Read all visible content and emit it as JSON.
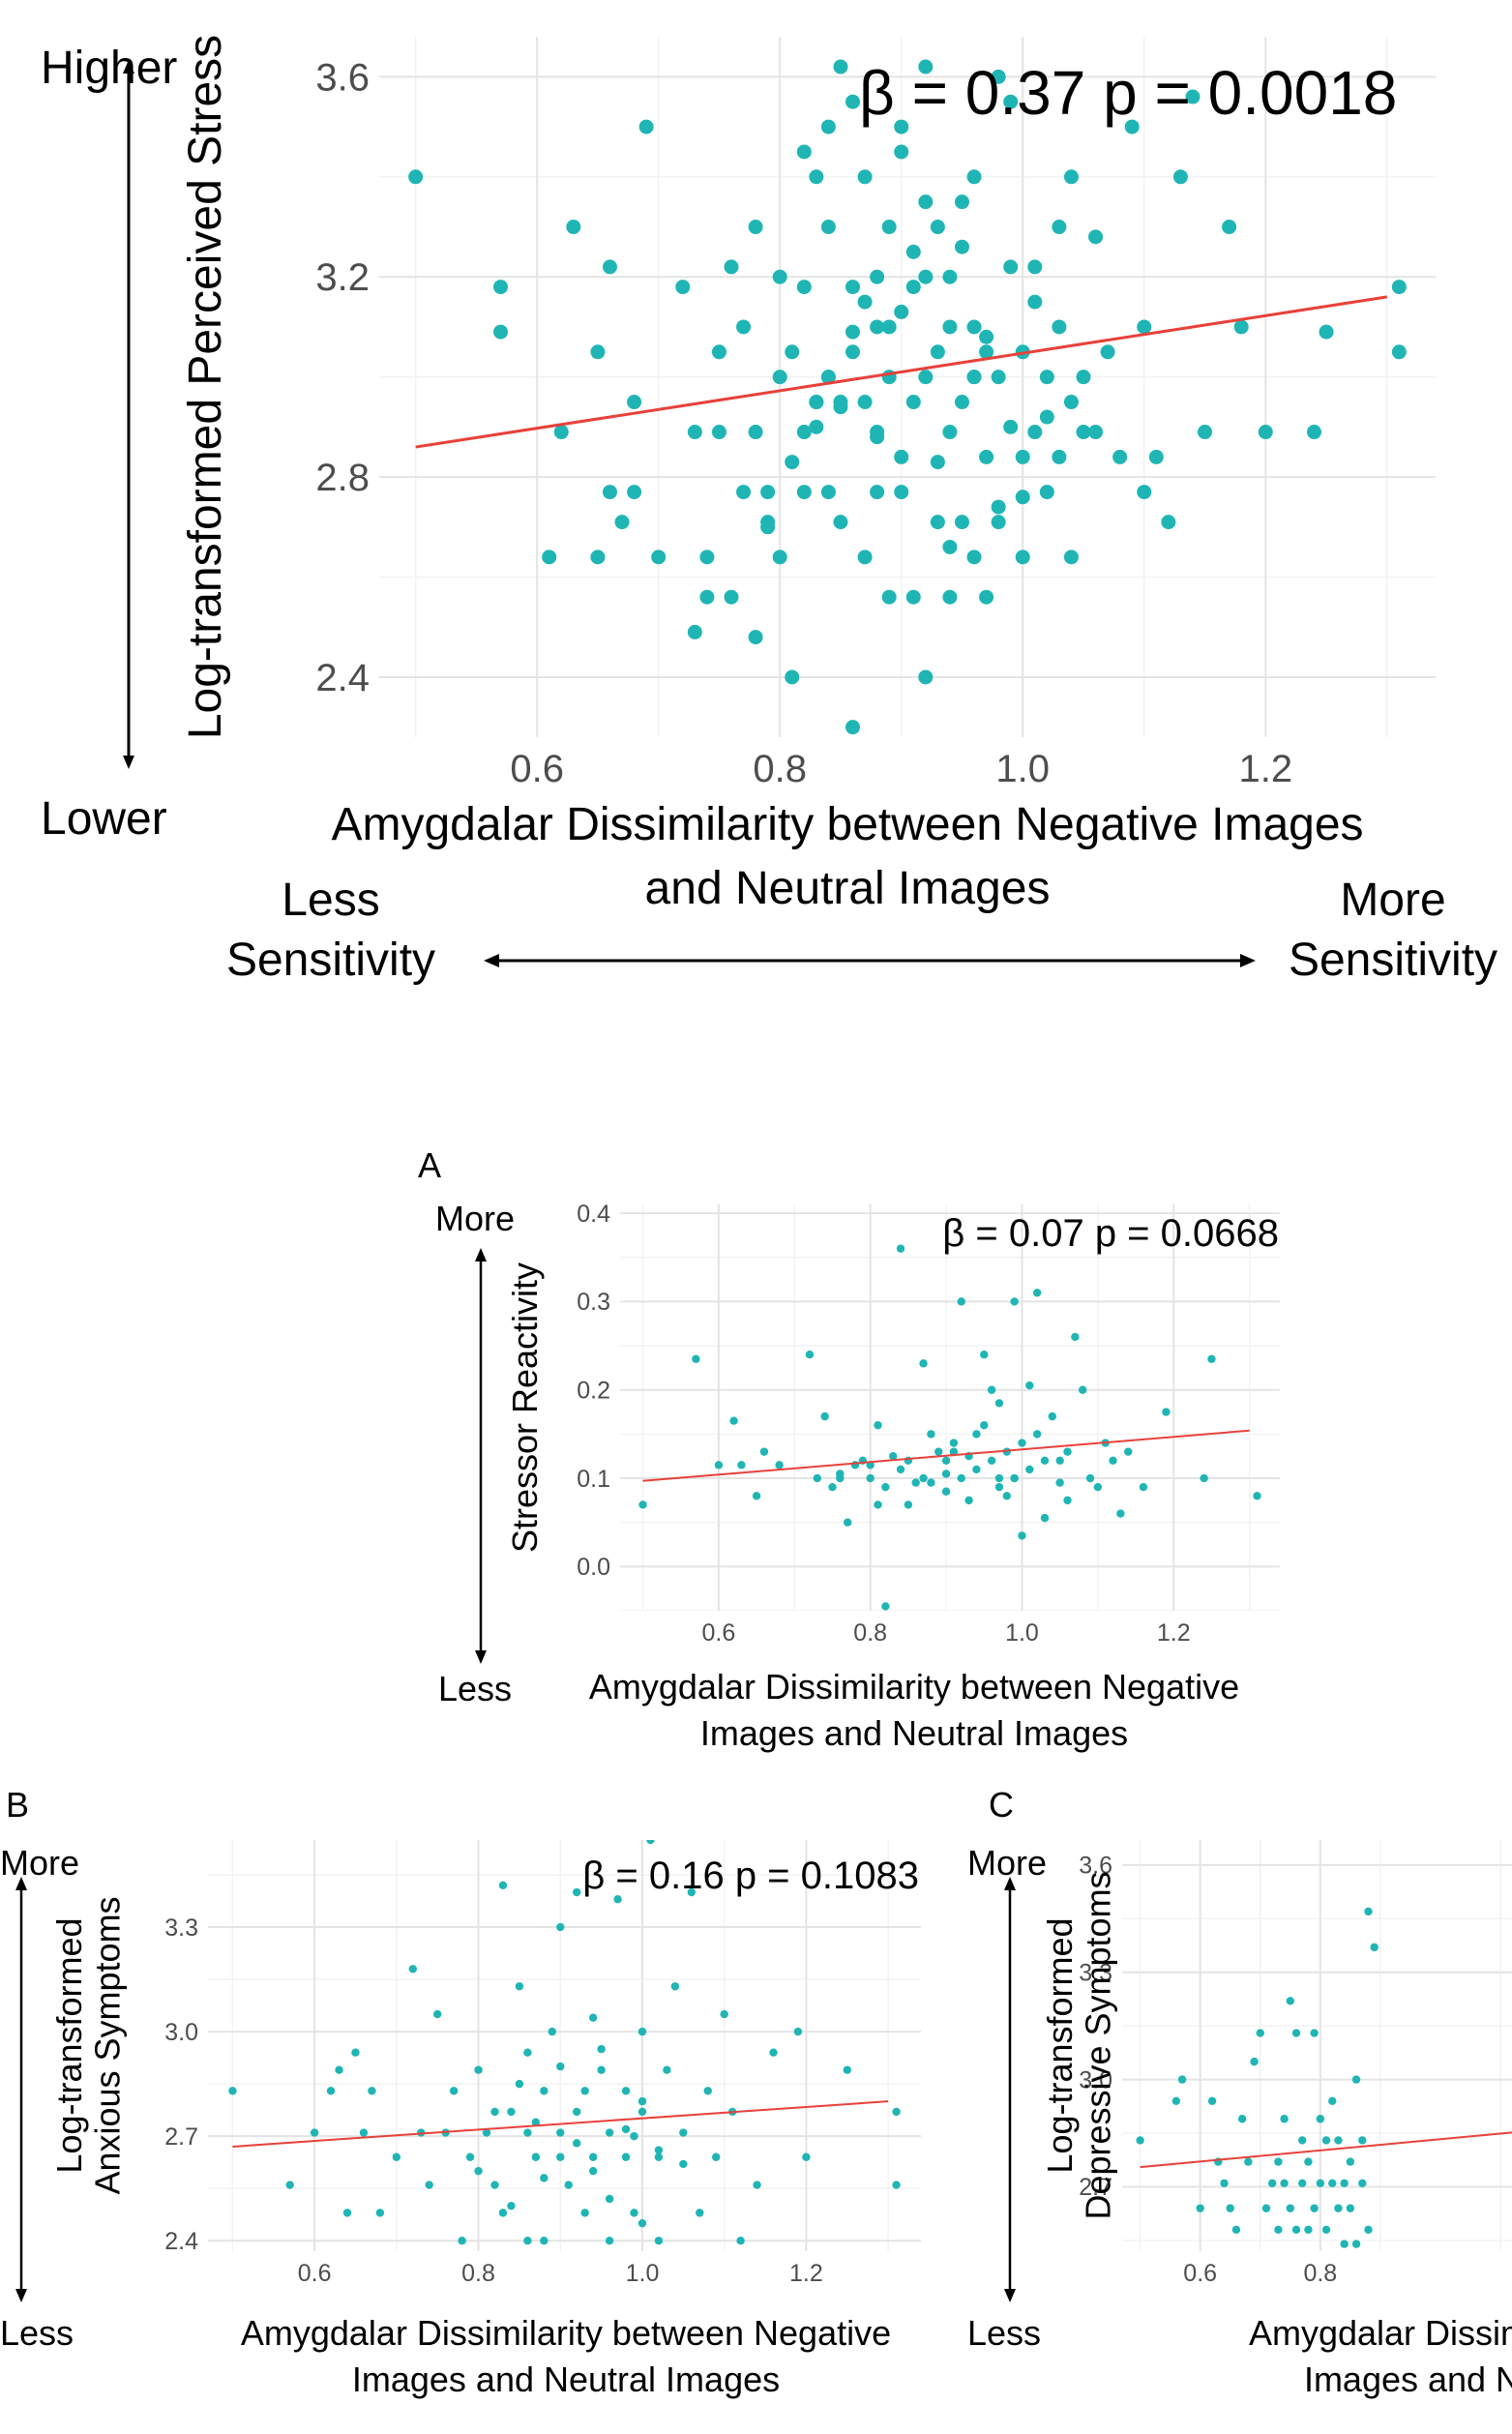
{
  "chart_data": [
    {
      "type": "scatter",
      "panel_label": "",
      "annotation": {
        "beta": "β = 0.37",
        "p": "p = 0.0018"
      },
      "xlabel": "Amygdalar Dissimilarity between Negative Images\nand Neutral Images",
      "ylabel": "Log-transformed Perceived Stress",
      "y_arrow": {
        "top": "Higher",
        "bottom": "Lower"
      },
      "x_arrow": {
        "left": "Less\nSensitivity",
        "right": "More\nSensitivity"
      },
      "xlim": [
        0.47,
        1.34
      ],
      "ylim": [
        2.28,
        3.68
      ],
      "xticks": [
        0.6,
        0.8,
        1.0,
        1.2
      ],
      "xtick_labels": [
        "0.6",
        "0.8",
        "1.0",
        "1.2"
      ],
      "yticks": [
        2.4,
        2.8,
        3.2,
        3.6
      ],
      "ytick_labels": [
        "2.4",
        "2.8",
        "3.2",
        "3.6"
      ],
      "fit_line": {
        "x": [
          0.5,
          1.3
        ],
        "y": [
          2.86,
          3.16
        ]
      },
      "grid": true,
      "points_x": [
        0.5,
        0.57,
        0.57,
        0.61,
        0.62,
        0.63,
        0.65,
        0.65,
        0.66,
        0.66,
        0.67,
        0.68,
        0.68,
        0.69,
        0.7,
        0.72,
        0.73,
        0.73,
        0.74,
        0.74,
        0.75,
        0.75,
        0.76,
        0.76,
        0.77,
        0.77,
        0.78,
        0.78,
        0.78,
        0.79,
        0.79,
        0.8,
        0.8,
        0.81,
        0.81,
        0.82,
        0.82,
        0.82,
        0.83,
        0.83,
        0.83,
        0.84,
        0.84,
        0.84,
        0.85,
        0.85,
        0.85,
        0.86,
        0.86,
        0.86,
        0.87,
        0.87,
        0.87,
        0.88,
        0.88,
        0.88,
        0.89,
        0.89,
        0.89,
        0.9,
        0.9,
        0.9,
        0.91,
        0.91,
        0.91,
        0.92,
        0.92,
        0.92,
        0.93,
        0.93,
        0.93,
        0.94,
        0.94,
        0.94,
        0.95,
        0.95,
        0.95,
        0.96,
        0.96,
        0.96,
        0.97,
        0.97,
        0.97,
        0.98,
        0.98,
        0.98,
        0.99,
        0.99,
        1.0,
        1.0,
        1.0,
        1.01,
        1.01,
        1.02,
        1.02,
        1.03,
        1.03,
        1.04,
        1.04,
        1.05,
        1.05,
        1.06,
        1.07,
        1.08,
        1.09,
        1.1,
        1.1,
        1.11,
        1.12,
        1.13,
        1.14,
        1.15,
        1.17,
        1.18,
        1.2,
        1.24,
        1.25,
        1.31,
        1.31,
        0.84,
        0.86,
        0.9,
        0.92,
        0.94,
        0.96,
        0.82,
        0.87,
        0.91,
        0.95,
        0.99,
        1.03,
        0.83,
        0.88,
        0.93,
        0.97,
        1.01,
        1.06,
        0.79,
        0.81,
        0.85,
        0.89,
        0.92,
        0.96,
        1.0,
        1.04,
        0.86,
        0.9,
        0.94,
        0.98,
        1.02,
        0.8,
        0.84,
        0.88
      ],
      "points_y": [
        3.4,
        3.09,
        3.18,
        2.64,
        2.89,
        3.3,
        2.64,
        3.05,
        2.77,
        3.22,
        2.71,
        2.77,
        2.95,
        3.5,
        2.64,
        3.18,
        2.49,
        2.89,
        2.56,
        2.64,
        2.89,
        3.05,
        2.56,
        3.22,
        2.77,
        3.1,
        2.89,
        2.48,
        3.3,
        2.77,
        2.71,
        3.0,
        2.64,
        2.4,
        3.05,
        3.18,
        2.77,
        2.89,
        2.9,
        3.4,
        2.95,
        3.5,
        3.0,
        2.77,
        3.62,
        2.95,
        2.71,
        2.3,
        3.18,
        3.05,
        2.64,
        2.95,
        3.4,
        3.1,
        2.89,
        2.77,
        3.3,
        3.0,
        2.56,
        3.5,
        2.77,
        2.84,
        3.18,
        2.95,
        2.56,
        3.0,
        3.62,
        2.4,
        3.05,
        2.71,
        3.3,
        2.56,
        2.89,
        3.1,
        3.26,
        2.95,
        2.71,
        2.64,
        3.0,
        3.4,
        2.84,
        3.05,
        2.56,
        3.6,
        3.0,
        2.71,
        3.22,
        2.9,
        3.05,
        2.64,
        2.84,
        3.22,
        2.89,
        3.0,
        2.77,
        3.1,
        2.84,
        3.4,
        2.64,
        3.0,
        2.89,
        2.89,
        3.05,
        2.84,
        3.5,
        3.1,
        2.77,
        2.84,
        2.71,
        3.4,
        3.56,
        2.89,
        3.3,
        3.1,
        2.89,
        2.89,
        3.09,
        3.18,
        3.05,
        3.3,
        3.55,
        3.45,
        3.35,
        3.2,
        3.1,
        3.45,
        3.15,
        3.25,
        3.35,
        3.55,
        3.3,
        2.95,
        3.2,
        2.83,
        3.08,
        3.15,
        3.28,
        2.7,
        2.83,
        2.94,
        3.1,
        3.2,
        3.0,
        2.76,
        2.95,
        3.09,
        3.13,
        2.66,
        2.74,
        2.92,
        3.2,
        3.0,
        2.88,
        3.0,
        3.12
      ]
    },
    {
      "type": "scatter",
      "panel_label": "A",
      "annotation": {
        "beta": "β = 0.07",
        "p": "p = 0.0668"
      },
      "xlabel": "Amygdalar Dissimilarity between Negative\nImages and Neutral Images",
      "ylabel": "Stressor Reactivity",
      "y_arrow": {
        "top": "More",
        "bottom": "Less"
      },
      "xlim": [
        0.47,
        1.34
      ],
      "ylim": [
        -0.05,
        0.41
      ],
      "xticks": [
        0.6,
        0.8,
        1.0,
        1.2
      ],
      "xtick_labels": [
        "0.6",
        "0.8",
        "1.0",
        "1.2"
      ],
      "yticks": [
        0.0,
        0.1,
        0.2,
        0.3,
        0.4
      ],
      "ytick_labels": [
        "0.0",
        "0.1",
        "0.2",
        "0.3",
        "0.4"
      ],
      "fit_line": {
        "x": [
          0.5,
          1.3
        ],
        "y": [
          0.097,
          0.154
        ]
      },
      "grid": true,
      "points_x": [
        0.5,
        0.57,
        0.6,
        0.62,
        0.63,
        0.65,
        0.66,
        0.68,
        0.72,
        0.73,
        0.74,
        0.75,
        0.76,
        0.77,
        0.78,
        0.79,
        0.8,
        0.81,
        0.81,
        0.82,
        0.83,
        0.84,
        0.85,
        0.85,
        0.86,
        0.87,
        0.87,
        0.88,
        0.89,
        0.9,
        0.9,
        0.91,
        0.92,
        0.92,
        0.93,
        0.93,
        0.94,
        0.94,
        0.95,
        0.96,
        0.96,
        0.97,
        0.97,
        0.98,
        0.98,
        0.99,
        0.99,
        1.0,
        1.0,
        1.01,
        1.01,
        1.02,
        1.02,
        1.03,
        1.04,
        1.05,
        1.05,
        1.06,
        1.07,
        1.08,
        1.09,
        1.1,
        1.11,
        1.12,
        1.13,
        1.14,
        1.16,
        1.19,
        1.24,
        1.25,
        1.31,
        0.84,
        0.88,
        0.91,
        0.95,
        0.99,
        1.03,
        0.76,
        0.8,
        0.9,
        0.97,
        1.06,
        0.82
      ],
      "points_y": [
        0.07,
        0.235,
        0.115,
        0.165,
        0.115,
        0.08,
        0.13,
        0.115,
        0.24,
        0.1,
        0.17,
        0.09,
        0.1,
        0.05,
        0.115,
        0.12,
        0.1,
        0.07,
        0.16,
        -0.045,
        0.125,
        0.36,
        0.12,
        0.07,
        0.095,
        0.23,
        0.1,
        0.15,
        0.13,
        0.105,
        0.085,
        0.14,
        0.1,
        0.3,
        0.125,
        0.075,
        0.11,
        0.15,
        0.24,
        0.12,
        0.2,
        0.09,
        0.185,
        0.13,
        0.08,
        0.3,
        0.1,
        0.035,
        0.14,
        0.205,
        0.11,
        0.31,
        0.15,
        0.055,
        0.17,
        0.12,
        0.095,
        0.075,
        0.26,
        0.2,
        0.1,
        0.09,
        0.14,
        0.12,
        0.06,
        0.13,
        0.09,
        0.175,
        0.1,
        0.235,
        0.08,
        0.11,
        0.095,
        0.13,
        0.16,
        0.1,
        0.12,
        0.105,
        0.115,
        0.12,
        0.1,
        0.13,
        0.09
      ]
    },
    {
      "type": "scatter",
      "panel_label": "B",
      "annotation": {
        "beta": "β = 0.16",
        "p": "p = 0.1083"
      },
      "xlabel": "Amygdalar Dissimilarity between Negative\nImages and Neutral Images",
      "ylabel": "Log-transformed\nAnxious Symptoms",
      "y_arrow": {
        "top": "More",
        "bottom": "Less"
      },
      "xlim": [
        0.47,
        1.34
      ],
      "ylim": [
        2.37,
        3.55
      ],
      "xticks": [
        0.6,
        0.8,
        1.0,
        1.2
      ],
      "xtick_labels": [
        "0.6",
        "0.8",
        "1.0",
        "1.2"
      ],
      "yticks": [
        2.4,
        2.7,
        3.0,
        3.3
      ],
      "ytick_labels": [
        "2.4",
        "2.7",
        "3.0",
        "3.3"
      ],
      "fit_line": {
        "x": [
          0.5,
          1.3
        ],
        "y": [
          2.67,
          2.8
        ]
      },
      "grid": true,
      "points_x": [
        0.5,
        0.57,
        0.6,
        0.62,
        0.63,
        0.64,
        0.65,
        0.66,
        0.67,
        0.68,
        0.7,
        0.72,
        0.73,
        0.74,
        0.75,
        0.76,
        0.77,
        0.78,
        0.79,
        0.8,
        0.81,
        0.82,
        0.83,
        0.83,
        0.84,
        0.85,
        0.86,
        0.86,
        0.87,
        0.88,
        0.88,
        0.89,
        0.9,
        0.9,
        0.91,
        0.92,
        0.92,
        0.93,
        0.94,
        0.94,
        0.95,
        0.96,
        0.96,
        0.97,
        0.98,
        0.98,
        0.99,
        1.0,
        1.0,
        1.01,
        1.02,
        1.02,
        1.03,
        1.04,
        1.05,
        1.06,
        1.07,
        1.08,
        1.09,
        1.1,
        1.11,
        1.12,
        1.14,
        1.16,
        1.19,
        1.2,
        1.25,
        1.31,
        1.31,
        0.82,
        0.86,
        0.9,
        0.94,
        0.98,
        1.02,
        0.84,
        0.88,
        0.92,
        0.96,
        1.0,
        0.8,
        0.85,
        0.9,
        0.95,
        1.0,
        1.05,
        0.87,
        0.93,
        0.99
      ],
      "points_y": [
        2.83,
        2.56,
        2.71,
        2.83,
        2.89,
        2.48,
        2.94,
        2.71,
        2.83,
        2.48,
        2.64,
        3.18,
        2.71,
        2.56,
        3.05,
        2.71,
        2.83,
        2.4,
        2.64,
        2.89,
        2.71,
        2.56,
        3.42,
        2.48,
        2.77,
        3.13,
        2.4,
        2.94,
        2.64,
        2.83,
        2.4,
        3.0,
        2.71,
        3.3,
        2.56,
        2.77,
        3.4,
        2.48,
        2.64,
        3.04,
        2.89,
        2.4,
        2.71,
        3.38,
        2.64,
        2.83,
        2.48,
        2.77,
        3.0,
        3.55,
        2.64,
        2.4,
        2.89,
        3.13,
        2.71,
        3.4,
        2.48,
        2.83,
        2.64,
        3.05,
        2.77,
        2.4,
        2.56,
        2.94,
        3.0,
        2.64,
        2.89,
        2.56,
        2.77,
        2.77,
        2.71,
        2.64,
        2.6,
        2.72,
        2.66,
        2.5,
        2.58,
        2.68,
        2.52,
        2.45,
        2.6,
        2.85,
        2.9,
        2.95,
        2.8,
        2.62,
        2.74,
        2.83,
        2.7
      ]
    },
    {
      "type": "scatter",
      "panel_label": "C",
      "annotation": {
        "beta": "",
        "p": ""
      },
      "xlabel": "Amygdalar Dissimilar\nImages and N",
      "ylabel": "Log-transformed\nDepressive Symptoms",
      "y_arrow": {
        "top": "More",
        "bottom": "Less"
      },
      "xlim": [
        0.47,
        1.34
      ],
      "ylim": [
        2.52,
        3.67
      ],
      "xticks": [
        0.6,
        0.8
      ],
      "xtick_labels": [
        "0.6",
        "0.8"
      ],
      "yticks": [
        2.7,
        3.0,
        3.3,
        3.6
      ],
      "ytick_labels": [
        "2.7",
        "3.0",
        "3.3",
        "3.6"
      ],
      "fit_line": {
        "x": [
          0.5,
          1.3
        ],
        "y": [
          2.755,
          2.88
        ]
      },
      "grid": true,
      "points_x": [
        0.5,
        0.56,
        0.57,
        0.6,
        0.62,
        0.63,
        0.64,
        0.65,
        0.66,
        0.67,
        0.68,
        0.69,
        0.7,
        0.71,
        0.72,
        0.73,
        0.73,
        0.74,
        0.74,
        0.75,
        0.75,
        0.76,
        0.76,
        0.77,
        0.77,
        0.78,
        0.78,
        0.79,
        0.79,
        0.8,
        0.8,
        0.81,
        0.81,
        0.82,
        0.82,
        0.83,
        0.83,
        0.84,
        0.84,
        0.85,
        0.85,
        0.86,
        0.86,
        0.87,
        0.87,
        0.88,
        0.88,
        0.89
      ],
      "points_y": [
        2.83,
        2.94,
        3.0,
        2.64,
        2.94,
        2.77,
        2.71,
        2.64,
        2.58,
        2.89,
        2.77,
        3.05,
        3.13,
        2.64,
        2.71,
        2.77,
        2.58,
        2.89,
        2.71,
        3.22,
        2.64,
        3.13,
        2.58,
        2.71,
        2.83,
        2.77,
        2.58,
        3.13,
        2.64,
        2.71,
        2.89,
        2.83,
        2.58,
        2.71,
        2.94,
        2.64,
        2.83,
        2.71,
        2.54,
        2.77,
        2.64,
        3.0,
        2.54,
        2.71,
        2.83,
        2.58,
        3.47,
        3.37
      ]
    }
  ]
}
